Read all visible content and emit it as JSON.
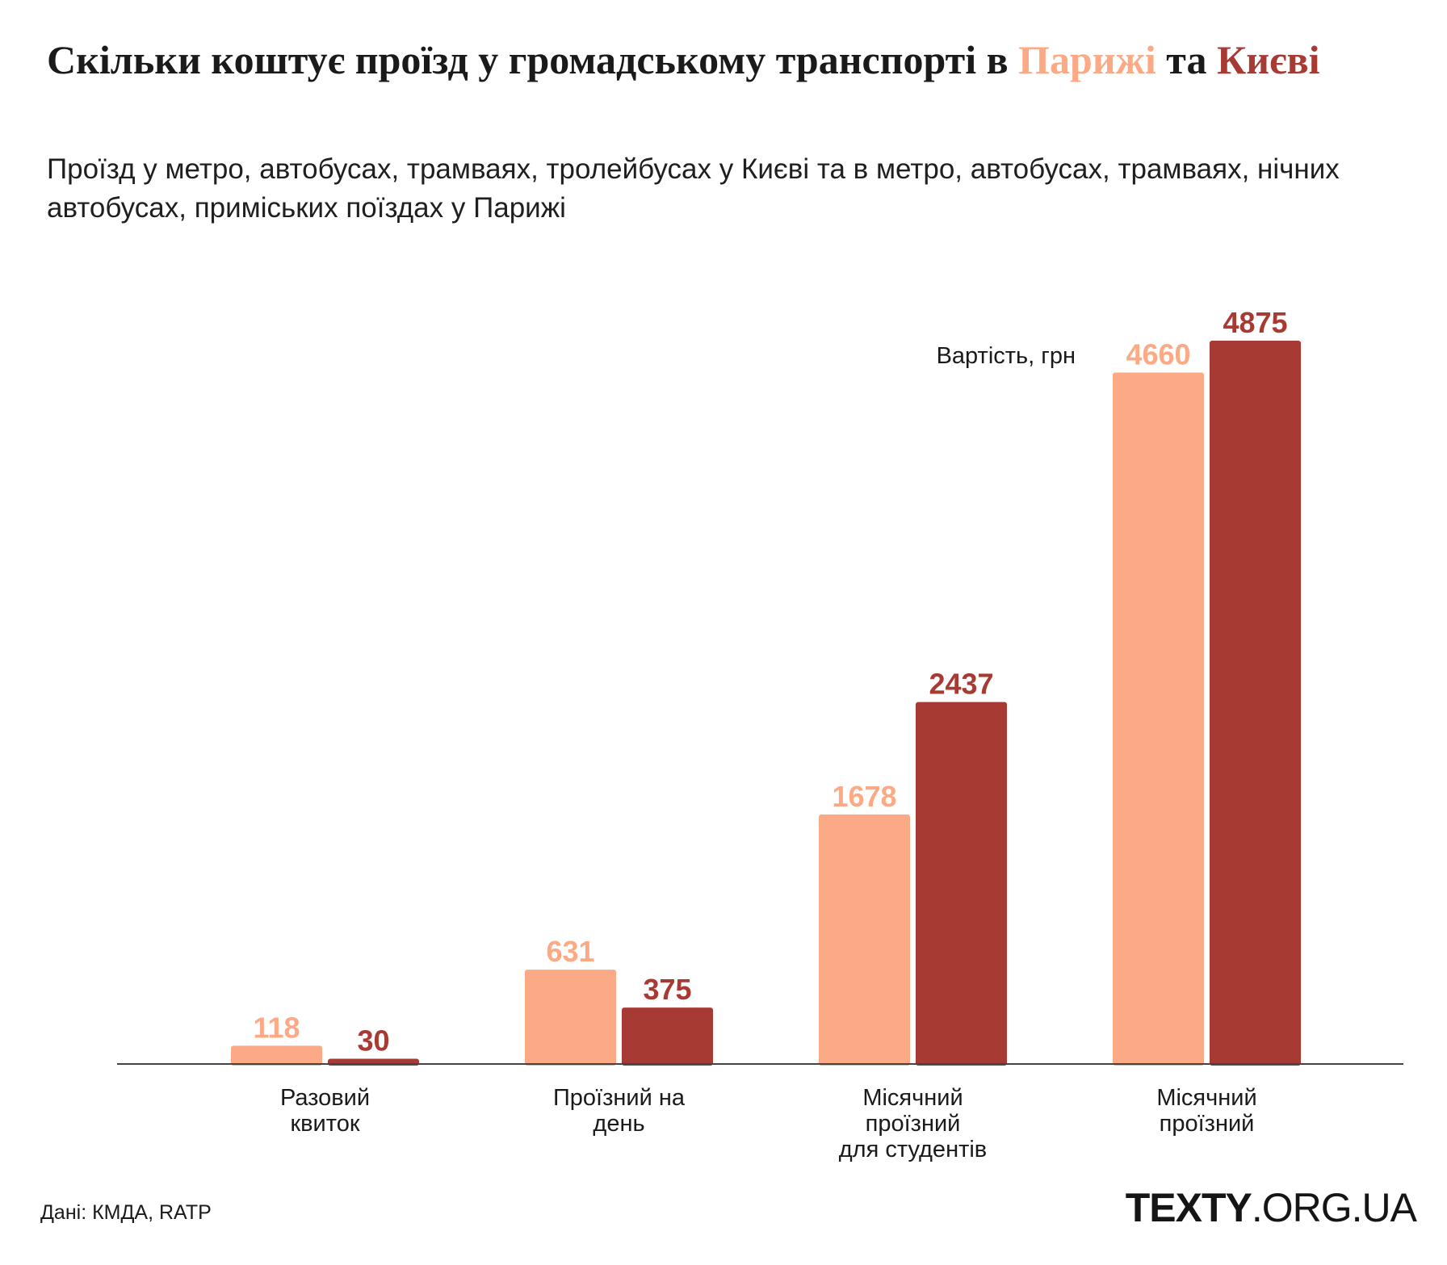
{
  "header": {
    "title_part1": "Скільки коштує проїзд у громадському транспорті в",
    "title_paris": "Парижі",
    "title_part2": "та",
    "title_kyiv": "Києві",
    "subtitle": "Проїзд у метро, автобусах, трамваях, тролейбусах у Києві та в метро, автобусах, трамваях, нічних автобусах, приміських поїздах у Парижі"
  },
  "footer": {
    "source": "Дані: КМДА, RATP",
    "logo_brand": "TEXTY",
    "logo_domain": ".ORG.UA"
  },
  "colors": {
    "paris": "#fca985",
    "kyiv": "#a83a34",
    "axis": "#444444"
  },
  "chart_data": {
    "type": "bar",
    "title": "Скільки коштує проїзд у громадському транспорті в Парижі та Києві",
    "ylabel": "Вартість, грн",
    "xlabel": "",
    "grid": false,
    "legend": "none",
    "ylim": [
      0,
      5000
    ],
    "categories": [
      [
        "Разовий",
        "квиток"
      ],
      [
        "Проїзний на",
        "день"
      ],
      [
        "Місячний",
        "проїзний",
        "для студентів"
      ],
      [
        "Місячний",
        "проїзний"
      ]
    ],
    "series": [
      {
        "name": "Парижі",
        "color": "#fca985",
        "values": [
          118,
          631,
          1678,
          4660
        ]
      },
      {
        "name": "Києві",
        "color": "#a83a34",
        "values": [
          30,
          375,
          2437,
          4875
        ]
      }
    ]
  }
}
